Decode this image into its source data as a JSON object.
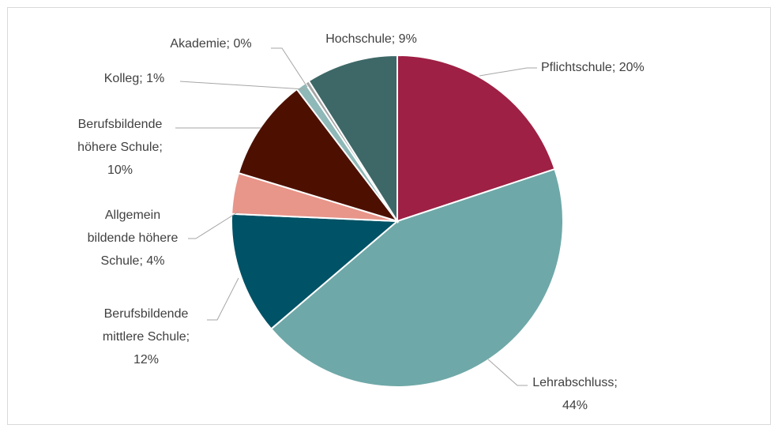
{
  "chart_data": {
    "type": "pie",
    "labels": [
      [
        "Pflichtschule; 20%"
      ],
      [
        "Lehrabschluss;",
        "44%"
      ],
      [
        "Berufsbildende",
        "mittlere Schule;",
        "12%"
      ],
      [
        "Allgemein",
        "bildende höhere",
        "Schule; 4%"
      ],
      [
        "Berufsbildende",
        "höhere Schule;",
        "10%"
      ],
      [
        "Kolleg; 1%"
      ],
      [
        "Akademie; 0%"
      ],
      [
        "Hochschule; 9%"
      ]
    ],
    "values": [
      20,
      44,
      12,
      4,
      10,
      1,
      0.4,
      9
    ],
    "colors": [
      "#9e2044",
      "#6fa8a8",
      "#005266",
      "#e8958a",
      "#4d1000",
      "#8fb8b8",
      "#a5a5a5",
      "#3e6868"
    ]
  }
}
